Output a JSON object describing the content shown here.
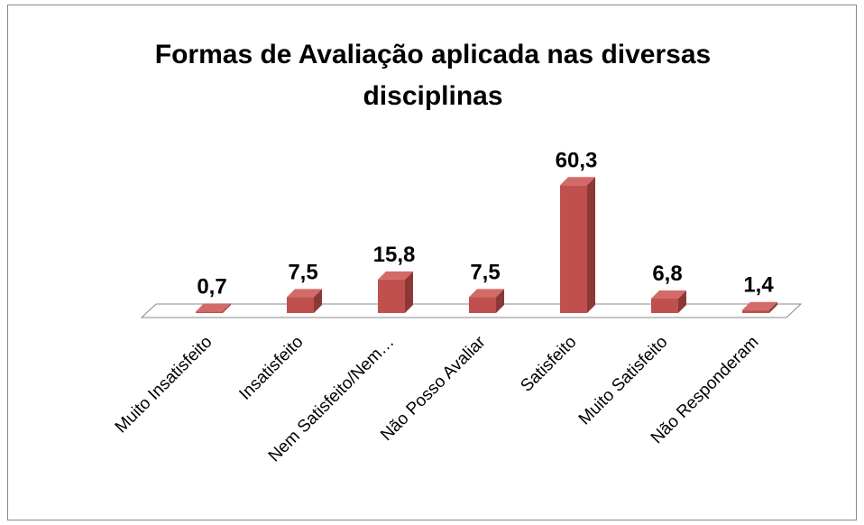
{
  "chart_data": {
    "type": "bar3d",
    "title": "Formas de Avaliação aplicada nas diversas disciplinas",
    "categories": [
      "Muito Insatisfeito",
      "Insatisfeito",
      "Nem Satisfeito/Nem…",
      "Não Posso Avaliar",
      "Satisfeito",
      "Muito Satisfeito",
      "Não Responderam"
    ],
    "values": [
      0.7,
      7.5,
      15.8,
      7.5,
      60.3,
      6.8,
      1.4
    ],
    "value_labels": [
      "0,7",
      "7,5",
      "15,8",
      "7,5",
      "60,3",
      "6,8",
      "1,4"
    ],
    "color": "#c0504d"
  }
}
